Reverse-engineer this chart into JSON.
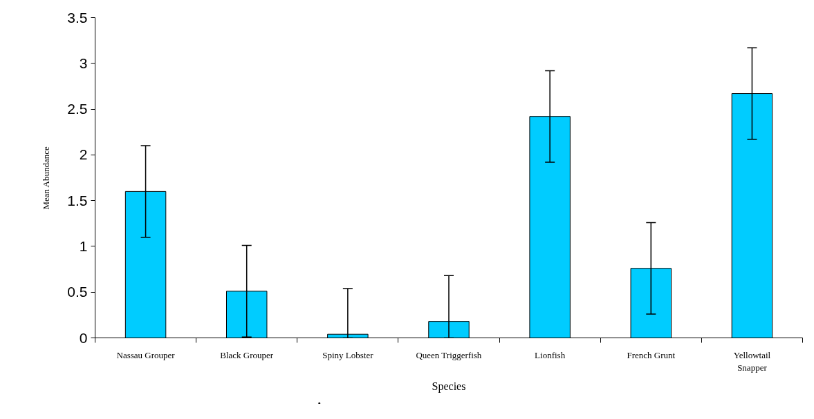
{
  "chart_data": {
    "type": "bar",
    "xlabel": "Species",
    "ylabel": "Mean Abundance",
    "categories": [
      "Nassau Grouper",
      "Black Grouper",
      "Spiny Lobster",
      "Queen Triggerfish",
      "Lionfish",
      "French Grunt",
      "Yellowtail Snapper"
    ],
    "values": [
      1.6,
      0.51,
      0.04,
      0.18,
      2.42,
      0.76,
      2.67
    ],
    "errors": [
      0.5,
      0.5,
      [
        0,
        0.54
      ],
      [
        0,
        0.68
      ],
      0.5,
      0.5,
      0.5
    ],
    "color": "#00ccff",
    "ylim": [
      0,
      3.5
    ],
    "yticks": [
      0,
      0.5,
      1,
      1.5,
      2,
      2.5,
      3,
      3.5
    ],
    "grid": false,
    "annotations": [
      "."
    ]
  }
}
